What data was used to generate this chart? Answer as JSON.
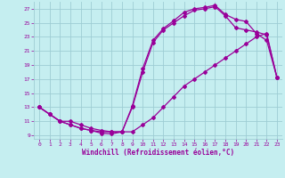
{
  "xlabel": "Windchill (Refroidissement éolien,°C)",
  "xlim": [
    -0.5,
    23.5
  ],
  "ylim": [
    8.5,
    28
  ],
  "yticks": [
    9,
    11,
    13,
    15,
    17,
    19,
    21,
    23,
    25,
    27
  ],
  "xticks": [
    0,
    1,
    2,
    3,
    4,
    5,
    6,
    7,
    8,
    9,
    10,
    11,
    12,
    13,
    14,
    15,
    16,
    17,
    18,
    19,
    20,
    21,
    22,
    23
  ],
  "bg_color": "#c5eef0",
  "grid_color": "#9ecdd4",
  "line_color": "#990099",
  "curve1_x": [
    0,
    1,
    2,
    3,
    4,
    5,
    6,
    7,
    8,
    9,
    10,
    11,
    12,
    13,
    14,
    15,
    16,
    17,
    18,
    19,
    20,
    21,
    22,
    23
  ],
  "curve1_y": [
    13,
    12,
    11,
    10.5,
    10,
    9.7,
    9.5,
    9.5,
    9.5,
    13.2,
    18.5,
    22.5,
    24.2,
    25.3,
    26.5,
    27.0,
    27.2,
    27.5,
    26.2,
    25.5,
    25.2,
    23.5,
    22.5,
    17.2
  ],
  "curve2_x": [
    0,
    1,
    2,
    3,
    4,
    5,
    6,
    7,
    8,
    9,
    10,
    11,
    12,
    13,
    14,
    15,
    16,
    17,
    18,
    19,
    20,
    21,
    22,
    23
  ],
  "curve2_y": [
    13,
    12,
    11,
    10.5,
    10,
    9.7,
    9.3,
    9.2,
    9.5,
    13.0,
    18.0,
    22.2,
    24.0,
    25.0,
    26.0,
    26.8,
    27.0,
    27.3,
    26.0,
    24.3,
    24.0,
    23.7,
    23.3,
    17.2
  ],
  "curve3_x": [
    0,
    1,
    2,
    3,
    4,
    5,
    6,
    7,
    8,
    9,
    10,
    11,
    12,
    13,
    14,
    15,
    16,
    17,
    18,
    19,
    20,
    21,
    22,
    23
  ],
  "curve3_y": [
    13,
    12,
    11,
    11,
    10.5,
    10,
    9.7,
    9.5,
    9.5,
    9.5,
    10.5,
    11.5,
    13.0,
    14.5,
    16.0,
    17.0,
    18.0,
    19.0,
    20.0,
    21.0,
    22.0,
    23.0,
    23.5,
    17.2
  ]
}
